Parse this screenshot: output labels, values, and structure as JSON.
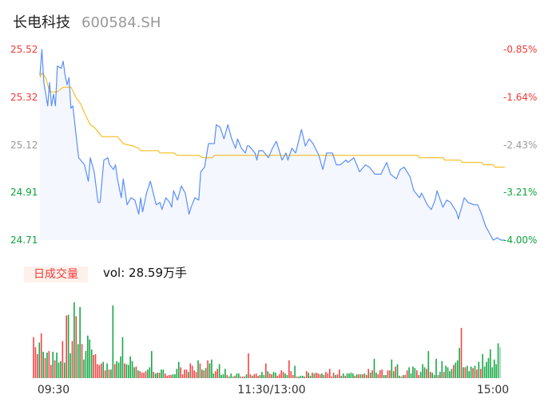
{
  "header": {
    "name": "长电科技",
    "code": "600584.SH"
  },
  "colors": {
    "up": "#f23a3a",
    "down": "#0ca33c",
    "neutral": "#999999",
    "price_line": "#5b8ff9",
    "avg_line": "#f5b400",
    "area_fill": "#f4f7fe"
  },
  "volume_panel": {
    "tag": "日成交量",
    "text": "vol: 28.59万手"
  },
  "chart_data": {
    "type": "line",
    "subtype": "intraday time-share with volume bars",
    "ylim": [
      24.71,
      25.52
    ],
    "y_ticks_left": [
      {
        "label": "25.52",
        "value": 25.52,
        "tone": "up"
      },
      {
        "label": "25.32",
        "value": 25.32,
        "tone": "up"
      },
      {
        "label": "25.12",
        "value": 25.12,
        "tone": "neutral"
      },
      {
        "label": "24.91",
        "value": 24.91,
        "tone": "down"
      },
      {
        "label": "24.71",
        "value": 24.71,
        "tone": "down"
      }
    ],
    "y_ticks_right": [
      {
        "label": "-0.85%",
        "tone": "up"
      },
      {
        "label": "-1.64%",
        "tone": "up"
      },
      {
        "label": "-2.43%",
        "tone": "neutral"
      },
      {
        "label": "-3.21%",
        "tone": "down"
      },
      {
        "label": "-4.00%",
        "tone": "down"
      }
    ],
    "x_ticks": [
      "09:30",
      "11:30/13:00",
      "15:00"
    ],
    "sessions": [
      [
        "09:30",
        "11:30"
      ],
      [
        "13:00",
        "15:00"
      ]
    ],
    "grid": false,
    "price": [
      [
        "09:30",
        25.41
      ],
      [
        "09:31",
        25.52
      ],
      [
        "09:32",
        25.38
      ],
      [
        "09:34",
        25.28
      ],
      [
        "09:35",
        25.38
      ],
      [
        "09:36",
        25.28
      ],
      [
        "09:37",
        25.33
      ],
      [
        "09:38",
        25.28
      ],
      [
        "09:39",
        25.45
      ],
      [
        "09:41",
        25.44
      ],
      [
        "09:42",
        25.47
      ],
      [
        "09:43",
        25.41
      ],
      [
        "09:44",
        25.37
      ],
      [
        "09:45",
        25.4
      ],
      [
        "09:46",
        25.27
      ],
      [
        "09:47",
        25.28
      ],
      [
        "09:49",
        25.13
      ],
      [
        "09:50",
        25.06
      ],
      [
        "09:53",
        25.03
      ],
      [
        "09:55",
        24.96
      ],
      [
        "09:56",
        25.06
      ],
      [
        "09:58",
        25.0
      ],
      [
        "10:00",
        24.87
      ],
      [
        "10:01",
        24.87
      ],
      [
        "10:03",
        25.05
      ],
      [
        "10:05",
        25.06
      ],
      [
        "10:06",
        25.03
      ],
      [
        "10:08",
        25.01
      ],
      [
        "10:09",
        25.03
      ],
      [
        "10:10",
        24.97
      ],
      [
        "10:12",
        24.89
      ],
      [
        "10:13",
        24.97
      ],
      [
        "10:15",
        24.86
      ],
      [
        "10:17",
        24.89
      ],
      [
        "10:19",
        24.88
      ],
      [
        "10:21",
        24.82
      ],
      [
        "10:22",
        24.89
      ],
      [
        "10:23",
        24.83
      ],
      [
        "10:25",
        24.91
      ],
      [
        "10:27",
        24.96
      ],
      [
        "10:30",
        24.86
      ],
      [
        "10:32",
        24.87
      ],
      [
        "10:33",
        24.84
      ],
      [
        "10:35",
        24.89
      ],
      [
        "10:37",
        24.87
      ],
      [
        "10:38",
        24.85
      ],
      [
        "10:39",
        24.92
      ],
      [
        "10:41",
        24.88
      ],
      [
        "10:43",
        24.94
      ],
      [
        "10:45",
        24.91
      ],
      [
        "10:47",
        24.82
      ],
      [
        "10:48",
        24.85
      ],
      [
        "10:50",
        24.89
      ],
      [
        "10:52",
        24.88
      ],
      [
        "10:53",
        25.0
      ],
      [
        "10:55",
        25.02
      ],
      [
        "10:57",
        25.12
      ],
      [
        "10:59",
        25.12
      ],
      [
        "11:00",
        25.12
      ],
      [
        "11:01",
        25.2
      ],
      [
        "11:03",
        25.19
      ],
      [
        "11:05",
        25.14
      ],
      [
        "11:07",
        25.2
      ],
      [
        "11:09",
        25.14
      ],
      [
        "11:11",
        25.1
      ],
      [
        "11:12",
        25.14
      ],
      [
        "11:14",
        25.1
      ],
      [
        "11:16",
        25.08
      ],
      [
        "11:17",
        25.11
      ],
      [
        "11:18",
        25.11
      ],
      [
        "11:21",
        25.08
      ],
      [
        "11:22",
        25.05
      ],
      [
        "11:23",
        25.09
      ],
      [
        "11:25",
        25.09
      ],
      [
        "11:28",
        25.06
      ],
      [
        "11:30",
        25.1
      ],
      [
        "13:02",
        25.13
      ],
      [
        "13:05",
        25.05
      ],
      [
        "13:07",
        25.08
      ],
      [
        "13:08",
        25.05
      ],
      [
        "13:10",
        25.1
      ],
      [
        "13:12",
        25.08
      ],
      [
        "13:15",
        25.18
      ],
      [
        "13:17",
        25.11
      ],
      [
        "13:19",
        25.14
      ],
      [
        "13:21",
        25.12
      ],
      [
        "13:24",
        25.07
      ],
      [
        "13:26",
        25.01
      ],
      [
        "13:28",
        25.08
      ],
      [
        "13:31",
        25.08
      ],
      [
        "13:33",
        25.03
      ],
      [
        "13:35",
        25.03
      ],
      [
        "13:38",
        25.05
      ],
      [
        "13:39",
        25.04
      ],
      [
        "13:42",
        25.06
      ],
      [
        "13:45",
        25.0
      ],
      [
        "13:48",
        25.03
      ],
      [
        "13:50",
        25.02
      ],
      [
        "13:53",
        24.99
      ],
      [
        "13:56",
        24.99
      ],
      [
        "13:59",
        25.04
      ],
      [
        "14:01",
        24.99
      ],
      [
        "14:04",
        24.97
      ],
      [
        "14:06",
        25.01
      ],
      [
        "14:08",
        25.02
      ],
      [
        "14:11",
        24.98
      ],
      [
        "14:13",
        24.92
      ],
      [
        "14:16",
        24.89
      ],
      [
        "14:17",
        24.91
      ],
      [
        "14:20",
        24.86
      ],
      [
        "14:22",
        24.84
      ],
      [
        "14:24",
        24.88
      ],
      [
        "14:25",
        24.92
      ],
      [
        "14:28",
        24.85
      ],
      [
        "14:30",
        24.88
      ],
      [
        "14:32",
        24.87
      ],
      [
        "14:35",
        24.83
      ],
      [
        "14:36",
        24.8
      ],
      [
        "14:39",
        24.89
      ],
      [
        "14:41",
        24.87
      ],
      [
        "14:44",
        24.86
      ],
      [
        "14:46",
        24.86
      ],
      [
        "14:48",
        24.82
      ],
      [
        "14:50",
        24.77
      ],
      [
        "14:52",
        24.74
      ],
      [
        "14:54",
        24.71
      ],
      [
        "14:56",
        24.72
      ],
      [
        "14:58",
        24.71
      ],
      [
        "15:00",
        24.71
      ]
    ],
    "avg_price": [
      [
        "09:30",
        25.4
      ],
      [
        "09:31",
        25.42
      ],
      [
        "09:33",
        25.4
      ],
      [
        "09:35",
        25.34
      ],
      [
        "09:39",
        25.34
      ],
      [
        "09:42",
        25.36
      ],
      [
        "09:46",
        25.36
      ],
      [
        "09:49",
        25.31
      ],
      [
        "09:51",
        25.29
      ],
      [
        "09:53",
        25.25
      ],
      [
        "09:56",
        25.2
      ],
      [
        "09:58",
        25.19
      ],
      [
        "10:02",
        25.15
      ],
      [
        "10:10",
        25.15
      ],
      [
        "10:13",
        25.12
      ],
      [
        "10:18",
        25.11
      ],
      [
        "10:21",
        25.1
      ],
      [
        "10:22",
        25.09
      ],
      [
        "10:31",
        25.09
      ],
      [
        "10:32",
        25.08
      ],
      [
        "10:39",
        25.08
      ],
      [
        "10:41",
        25.07
      ],
      [
        "10:52",
        25.07
      ],
      [
        "10:54",
        25.06
      ],
      [
        "10:59",
        25.06
      ],
      [
        "11:00",
        25.07
      ],
      [
        "14:15",
        25.07
      ],
      [
        "14:16",
        25.06
      ],
      [
        "14:28",
        25.06
      ],
      [
        "14:29",
        25.05
      ],
      [
        "14:37",
        25.05
      ],
      [
        "14:38",
        25.04
      ],
      [
        "14:48",
        25.04
      ],
      [
        "14:49",
        25.03
      ],
      [
        "14:54",
        25.03
      ],
      [
        "14:55",
        25.02
      ],
      [
        "15:00",
        25.02
      ]
    ],
    "volume": {
      "values": [
        53,
        40,
        31,
        46,
        58,
        34,
        26,
        33,
        35,
        17,
        34,
        23,
        33,
        20,
        22,
        48,
        20,
        81,
        82,
        32,
        48,
        98,
        80,
        44,
        92,
        44,
        24,
        35,
        55,
        50,
        37,
        30,
        31,
        18,
        17,
        19,
        21,
        10,
        19,
        11,
        11,
        94,
        18,
        22,
        20,
        28,
        53,
        19,
        18,
        17,
        28,
        22,
        14,
        15,
        10,
        9,
        7,
        7,
        9,
        11,
        14,
        35,
        8,
        6,
        7,
        7,
        11,
        11,
        6,
        3,
        4,
        4,
        5,
        5,
        12,
        21,
        14,
        5,
        11,
        11,
        8,
        19,
        16,
        10,
        8,
        23,
        19,
        11,
        10,
        13,
        23,
        19,
        24,
        6,
        9,
        12,
        18,
        4,
        5,
        12,
        4,
        2,
        6,
        2,
        3,
        6,
        6,
        2,
        2,
        2,
        5,
        32,
        5,
        3,
        5,
        6,
        3,
        4,
        8,
        4,
        19,
        9,
        6,
        5,
        8,
        7,
        3,
        5,
        10,
        8,
        6,
        4,
        23,
        9,
        4,
        16,
        2,
        2,
        3,
        3,
        2,
        9,
        7,
        3,
        7,
        6,
        7,
        6,
        5,
        6,
        4,
        8,
        6,
        12,
        2,
        7,
        4,
        5,
        11,
        3,
        6,
        3,
        6,
        6,
        7,
        6,
        3,
        5,
        5,
        5,
        5,
        6,
        4,
        12,
        7,
        10,
        25,
        7,
        5,
        10,
        11,
        4,
        4,
        10,
        10,
        24,
        9,
        15,
        18,
        3,
        2,
        4,
        4,
        10,
        14,
        6,
        15,
        13,
        10,
        4,
        8,
        18,
        14,
        12,
        35,
        8,
        7,
        4,
        25,
        4,
        8,
        22,
        8,
        16,
        14,
        9,
        12,
        17,
        20,
        23,
        39,
        65,
        14,
        14,
        16,
        9,
        15,
        13,
        16,
        11,
        21,
        12,
        31,
        15,
        21,
        26,
        37,
        14,
        24,
        18,
        45,
        40
      ],
      "direction": "rrrgrgrgrrgrgggrgrggrgrggrgggggrrrrrgrgrggrggggrgggggrgrrrrgggrggrggrrrrggggrrrrgrrrrgrgrgrgggrrggggrgggrggrrggrrgrrrgggrgrrggrrrrggrrrgrgggrrggrgrrrggrrrrrgrrggrggggrgrgrgrrgrggrrrggrrggrggrgrrggggrrgggrgrgggrggrggggrgggrgrgggrgrgr",
      "last_bar_faded": true
    }
  }
}
